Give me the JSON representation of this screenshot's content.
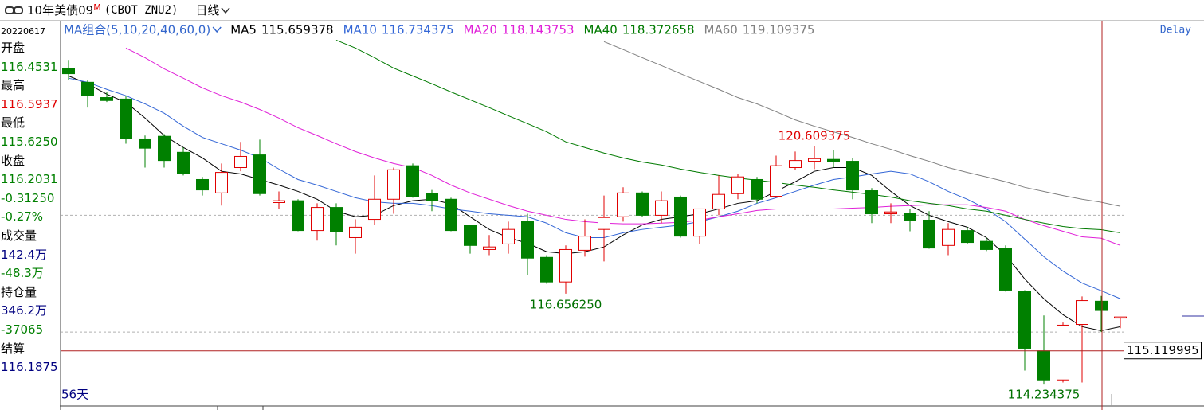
{
  "header": {
    "symbol": "10年美债09",
    "flag": "M",
    "code": "(CBOT ZNU2)",
    "period": "日线"
  },
  "delay": "Delay",
  "footer": {
    "days": "56天"
  },
  "side_panel": {
    "date": "20220617",
    "lines": [
      {
        "text": "开盘",
        "color": "#000000"
      },
      {
        "text": "116.4531",
        "color": "#008000"
      },
      {
        "text": "最高",
        "color": "#000000"
      },
      {
        "text": "116.5937",
        "color": "#e00000"
      },
      {
        "text": "最低",
        "color": "#000000"
      },
      {
        "text": "115.6250",
        "color": "#008000"
      },
      {
        "text": "收盘",
        "color": "#000000"
      },
      {
        "text": "116.2031",
        "color": "#008000"
      },
      {
        "text": "-0.31250",
        "color": "#008000"
      },
      {
        "text": "-0.27%",
        "color": "#008000"
      },
      {
        "text": "成交量",
        "color": "#000000"
      },
      {
        "text": "142.4万",
        "color": "#000080"
      },
      {
        "text": "-48.3万",
        "color": "#008000"
      },
      {
        "text": "持仓量",
        "color": "#000000"
      },
      {
        "text": "346.2万",
        "color": "#000080"
      },
      {
        "text": "-37065",
        "color": "#008000"
      },
      {
        "text": "结算",
        "color": "#000000"
      },
      {
        "text": "116.1875",
        "color": "#000080"
      }
    ]
  },
  "chart_data": {
    "type": "candlestick",
    "ylim": [
      113.64,
      123.94
    ],
    "up_color": "#e00000",
    "down_color": "#008000",
    "open": [
      122.71,
      122.33,
      121.92,
      121.88,
      120.81,
      120.88,
      120.45,
      119.72,
      119.36,
      120.04,
      120.38,
      119.1,
      119.15,
      118.35,
      118.97,
      118.16,
      118.65,
      119.19,
      120.09,
      119.34,
      119.19,
      118.48,
      117.84,
      117.99,
      118.59,
      117.63,
      116.97,
      117.82,
      118.38,
      118.72,
      119.36,
      118.76,
      119.25,
      118.2,
      118.93,
      119.34,
      119.72,
      119.27,
      120.04,
      120.21,
      120.26,
      120.21,
      119.42,
      118.8,
      118.82,
      118.63,
      117.95,
      118.35,
      118.06,
      117.88,
      116.71,
      115.12,
      114.34,
      115.83,
      116.453125,
      116.0
    ],
    "high": [
      122.93,
      122.39,
      122.07,
      121.97,
      120.9,
      120.94,
      120.58,
      119.79,
      120.15,
      120.73,
      120.79,
      119.4,
      119.19,
      119.08,
      119.08,
      118.65,
      119.83,
      120.04,
      120.15,
      119.44,
      119.23,
      118.48,
      118.23,
      118.59,
      118.8,
      117.69,
      117.95,
      118.65,
      119.29,
      119.51,
      119.4,
      119.4,
      119.29,
      118.93,
      119.83,
      119.87,
      119.79,
      120.36,
      120.47,
      120.609375,
      120.51,
      120.3,
      119.49,
      119.08,
      118.93,
      118.87,
      118.55,
      118.44,
      118.16,
      117.95,
      116.75,
      116.07,
      115.88,
      116.58,
      116.59375,
      116.03
    ],
    "low": [
      122.39,
      121.65,
      121.8,
      120.68,
      120.04,
      120.04,
      119.83,
      119.29,
      119.02,
      119.94,
      119.29,
      118.93,
      118.33,
      118.08,
      117.95,
      117.73,
      118.5,
      118.8,
      119.23,
      118.87,
      118.33,
      117.73,
      117.69,
      117.73,
      117.16,
      116.92,
      116.65625,
      117.65,
      117.52,
      118.59,
      118.72,
      118.55,
      118.16,
      117.99,
      118.76,
      119.19,
      119.08,
      119.23,
      119.98,
      120.0,
      120.04,
      119.19,
      118.55,
      118.55,
      118.33,
      117.86,
      117.69,
      117.99,
      117.8,
      116.71,
      114.59,
      114.234375,
      114.27,
      114.27,
      115.625,
      115.73
    ],
    "close": [
      122.56,
      121.97,
      121.84,
      120.83,
      120.56,
      120.23,
      119.87,
      119.44,
      119.91,
      120.34,
      119.34,
      119.15,
      118.35,
      118.97,
      118.33,
      118.44,
      119.19,
      119.98,
      119.27,
      119.15,
      118.35,
      117.95,
      117.91,
      118.38,
      117.61,
      116.97,
      117.84,
      118.2,
      118.7,
      119.36,
      118.76,
      119.15,
      118.2,
      118.93,
      119.32,
      119.79,
      119.19,
      120.09,
      120.23,
      120.28,
      120.19,
      119.44,
      118.8,
      118.85,
      118.63,
      117.88,
      118.38,
      118.03,
      117.84,
      116.75,
      115.19,
      114.34,
      115.81,
      116.47,
      116.203125,
      116.03
    ],
    "ma_title": "MA组合(5,10,20,40,60,0)",
    "series": [
      {
        "name": "MA5",
        "color": "#000000",
        "values": [
          122.5,
          122.29,
          122.01,
          121.79,
          121.37,
          120.9,
          120.58,
          120.3,
          119.94,
          119.87,
          119.72,
          119.57,
          119.4,
          119.19,
          118.87,
          118.72,
          118.76,
          119.02,
          119.15,
          119.19,
          119.06,
          118.72,
          118.38,
          118.16,
          118.01,
          117.78,
          117.73,
          117.78,
          117.91,
          118.23,
          118.5,
          118.65,
          118.72,
          118.8,
          118.93,
          119.08,
          119.15,
          119.4,
          119.66,
          119.94,
          120.04,
          120.04,
          119.83,
          119.4,
          119.02,
          118.76,
          118.59,
          118.44,
          118.16,
          117.69,
          117.05,
          116.52,
          116.09,
          115.77,
          115.659378,
          115.77
        ]
      },
      {
        "name": "MA10",
        "color": "#3366d6",
        "values": [
          122.44,
          122.33,
          122.14,
          121.97,
          121.75,
          121.5,
          121.15,
          120.85,
          120.68,
          120.51,
          120.3,
          120.0,
          119.72,
          119.57,
          119.4,
          119.23,
          119.12,
          119.08,
          119.08,
          119.02,
          118.93,
          118.87,
          118.8,
          118.76,
          118.72,
          118.55,
          118.29,
          118.16,
          118.16,
          118.29,
          118.38,
          118.44,
          118.5,
          118.59,
          118.72,
          118.87,
          119.08,
          119.23,
          119.4,
          119.57,
          119.72,
          119.79,
          119.87,
          119.94,
          119.87,
          119.66,
          119.4,
          119.19,
          118.93,
          118.59,
          118.12,
          117.65,
          117.26,
          116.94,
          116.734375,
          116.52
        ]
      },
      {
        "name": "MA20",
        "color": "#e020d8",
        "values": [
          null,
          null,
          null,
          123.25,
          122.99,
          122.69,
          122.44,
          122.18,
          121.97,
          121.8,
          121.6,
          121.37,
          121.11,
          120.9,
          120.68,
          120.47,
          120.3,
          120.15,
          120.04,
          119.83,
          119.57,
          119.36,
          119.19,
          119.02,
          118.87,
          118.76,
          118.65,
          118.59,
          118.55,
          118.53,
          118.53,
          118.55,
          118.57,
          118.63,
          118.72,
          118.8,
          118.89,
          118.93,
          118.93,
          118.93,
          118.93,
          118.95,
          118.97,
          119.0,
          119.02,
          119.04,
          119.04,
          119.04,
          118.97,
          118.87,
          118.65,
          118.48,
          118.33,
          118.18,
          118.143753,
          117.95
        ]
      },
      {
        "name": "MA40",
        "color": "#007a00",
        "values": [
          null,
          null,
          null,
          null,
          null,
          null,
          null,
          null,
          null,
          null,
          null,
          null,
          null,
          null,
          123.46,
          123.25,
          122.99,
          122.71,
          122.5,
          122.29,
          122.07,
          121.86,
          121.65,
          121.43,
          121.22,
          121.0,
          120.73,
          120.58,
          120.43,
          120.3,
          120.19,
          120.11,
          120.0,
          119.91,
          119.83,
          119.76,
          119.7,
          119.64,
          119.57,
          119.51,
          119.44,
          119.38,
          119.32,
          119.25,
          119.15,
          119.08,
          119.02,
          118.93,
          118.87,
          118.76,
          118.65,
          118.55,
          118.46,
          118.4,
          118.372658,
          118.29
        ]
      },
      {
        "name": "MA60",
        "color": "#808080",
        "values": [
          null,
          null,
          null,
          null,
          null,
          null,
          null,
          null,
          null,
          null,
          null,
          null,
          null,
          null,
          null,
          null,
          null,
          null,
          null,
          null,
          null,
          null,
          null,
          null,
          null,
          null,
          null,
          null,
          123.42,
          123.21,
          122.99,
          122.78,
          122.56,
          122.35,
          122.14,
          121.92,
          121.75,
          121.54,
          121.32,
          121.15,
          121.0,
          120.85,
          120.68,
          120.53,
          120.36,
          120.21,
          120.04,
          119.91,
          119.79,
          119.66,
          119.51,
          119.4,
          119.29,
          119.19,
          119.109375,
          119.0
        ]
      }
    ],
    "annotations": [
      {
        "value": 120.609375,
        "label": "120.609375",
        "color": "#e00000"
      },
      {
        "value": 116.65625,
        "label": "116.656250",
        "color": "#007000"
      },
      {
        "value": 114.234375,
        "label": "114.234375",
        "color": "#007000"
      }
    ],
    "reference_lines": [
      118.76,
      115.625
    ],
    "cursor_price": 115.119995
  }
}
